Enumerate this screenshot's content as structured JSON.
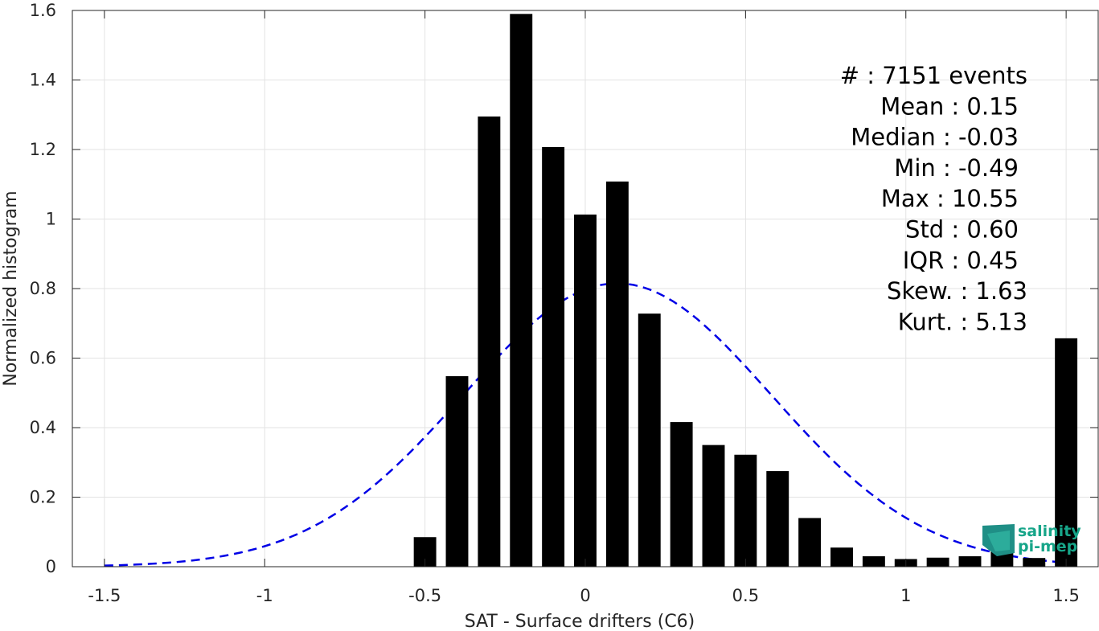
{
  "chart_data": {
    "type": "bar",
    "xlabel": "SAT - Surface drifters (C6)",
    "ylabel": "Normalized histogram",
    "xlim": [
      -1.6,
      1.6
    ],
    "ylim": [
      0,
      1.6
    ],
    "x_ticks": [
      -1.5,
      -1,
      -0.5,
      0,
      0.5,
      1,
      1.5
    ],
    "x_tick_labels": [
      "-1.5",
      "-1",
      "-0.5",
      "0",
      "0.5",
      "1",
      "1.5"
    ],
    "y_ticks": [
      0,
      0.2,
      0.4,
      0.6,
      0.8,
      1,
      1.2,
      1.4,
      1.6
    ],
    "y_tick_labels": [
      "0",
      "0.2",
      "0.4",
      "0.6",
      "0.8",
      "1",
      "1.2",
      "1.4",
      "1.6"
    ],
    "grid": true,
    "bar_color": "#000000",
    "bar_width": 0.07,
    "bins": [
      {
        "x": -0.5,
        "y": 0.085
      },
      {
        "x": -0.4,
        "y": 0.548
      },
      {
        "x": -0.3,
        "y": 1.295
      },
      {
        "x": -0.2,
        "y": 1.59
      },
      {
        "x": -0.1,
        "y": 1.207
      },
      {
        "x": 0.0,
        "y": 1.013
      },
      {
        "x": 0.1,
        "y": 1.108
      },
      {
        "x": 0.2,
        "y": 0.728
      },
      {
        "x": 0.3,
        "y": 0.416
      },
      {
        "x": 0.4,
        "y": 0.35
      },
      {
        "x": 0.5,
        "y": 0.322
      },
      {
        "x": 0.6,
        "y": 0.275
      },
      {
        "x": 0.7,
        "y": 0.14
      },
      {
        "x": 0.8,
        "y": 0.055
      },
      {
        "x": 0.9,
        "y": 0.03
      },
      {
        "x": 1.0,
        "y": 0.022
      },
      {
        "x": 1.1,
        "y": 0.026
      },
      {
        "x": 1.2,
        "y": 0.03
      },
      {
        "x": 1.3,
        "y": 0.102
      },
      {
        "x": 1.4,
        "y": 0.025
      },
      {
        "x": 1.5,
        "y": 0.657
      }
    ],
    "fit_curve": {
      "style": "dashed",
      "color": "#0000e6",
      "mean": 0.1,
      "std": 0.48,
      "x_range": [
        -1.5,
        1.5
      ]
    },
    "stats": [
      "#  : 7151 events",
      "Mean : 0.15",
      "Median : -0.03",
      "Min : -0.49",
      "Max : 10.55",
      "Std : 0.60",
      "IQR : 0.45",
      "Skew. : 1.63",
      "Kurt. : 5.13"
    ]
  },
  "logo": {
    "line1": "salinity",
    "line2": "pi-mep",
    "color": "#17a589"
  }
}
